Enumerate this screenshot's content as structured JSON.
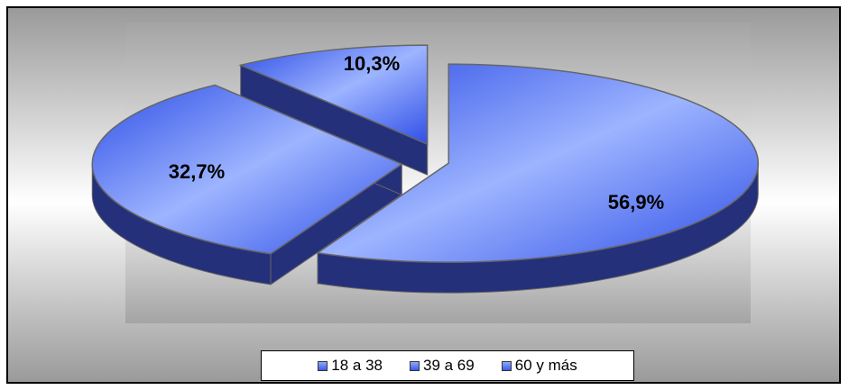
{
  "chart_data": {
    "type": "pie",
    "title": "",
    "categories": [
      "18 a 38",
      "39 a 69",
      "60 y más"
    ],
    "values": [
      56.9,
      32.7,
      10.3
    ],
    "value_labels": [
      "56,9%",
      "32,7%",
      "10,3%"
    ],
    "legend_position": "bottom",
    "exploded": true,
    "three_d": true,
    "colors": {
      "top_light": "#9db4ff",
      "top_dark": "#2f4fe6",
      "side": "#25307a",
      "edge": "#666666"
    }
  }
}
